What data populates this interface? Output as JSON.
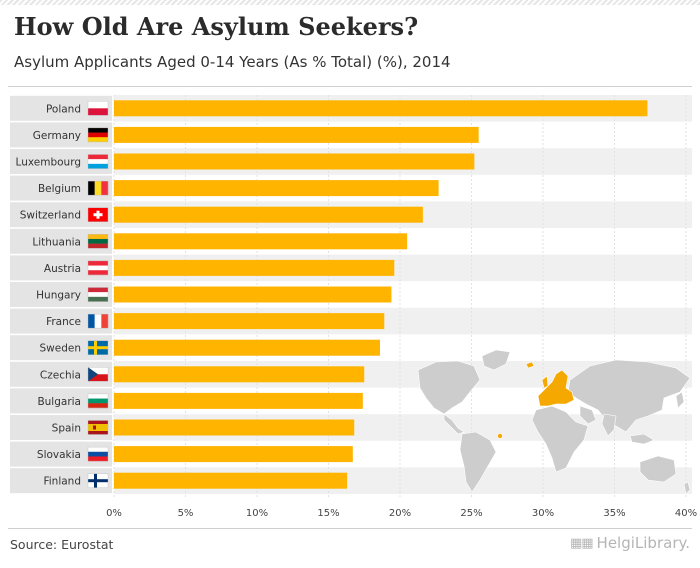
{
  "header": {
    "title": "How Old Are Asylum Seekers?",
    "subtitle": "Asylum Applicants Aged 0-14 Years (As % Total) (%), 2014"
  },
  "footer": {
    "source": "Source: Eurostat",
    "brand": "HelgiLibrary."
  },
  "colors": {
    "bar": "#ffb400",
    "row_alt": "#f0f0f0",
    "label_band": "#e4e4e4",
    "map_land": "#cdcdcd",
    "map_highlight": "#f5a800"
  },
  "chart_data": {
    "type": "bar",
    "orientation": "horizontal",
    "title": "How Old Are Asylum Seekers?",
    "subtitle": "Asylum Applicants Aged 0-14 Years (As % Total) (%), 2014",
    "categories": [
      "Poland",
      "Germany",
      "Luxembourg",
      "Belgium",
      "Switzerland",
      "Lithuania",
      "Austria",
      "Hungary",
      "France",
      "Sweden",
      "Czechia",
      "Bulgaria",
      "Spain",
      "Slovakia",
      "Finland"
    ],
    "values": [
      37.3,
      25.5,
      25.2,
      22.7,
      21.6,
      20.5,
      19.6,
      19.4,
      18.9,
      18.6,
      17.5,
      17.4,
      16.8,
      16.7,
      16.3
    ],
    "xlim": [
      0,
      40
    ],
    "xticks": [
      0,
      5,
      10,
      15,
      20,
      25,
      30,
      35,
      40
    ],
    "xtick_labels": [
      "0%",
      "5%",
      "10%",
      "15%",
      "20%",
      "25%",
      "30%",
      "35%",
      "40%"
    ],
    "xlabel": "",
    "ylabel": "",
    "grid": true,
    "flags": [
      "poland",
      "germany",
      "luxembourg",
      "belgium",
      "switzerland",
      "lithuania",
      "austria",
      "hungary",
      "france",
      "sweden",
      "czechia",
      "bulgaria",
      "spain",
      "slovakia",
      "finland"
    ]
  }
}
